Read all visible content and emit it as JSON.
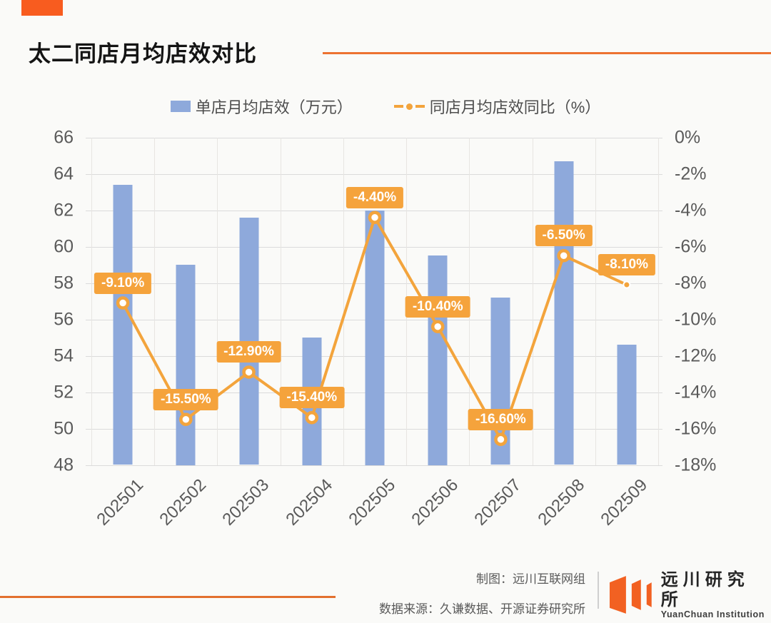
{
  "header": {
    "title": "太二同店月均店效对比",
    "accent_color": "#F85C1F",
    "rule_color": "#ED7231"
  },
  "legend": {
    "bar_label": "单店月均店效（万元）",
    "line_label": "同店月均店效同比（%）"
  },
  "chart_data": {
    "type": "bar+line",
    "categories": [
      "202501",
      "202502",
      "202503",
      "202504",
      "202505",
      "202506",
      "202507",
      "202508",
      "202509"
    ],
    "series": [
      {
        "name": "单店月均店效（万元）",
        "type": "bar",
        "axis": "left",
        "color": "#8EA9DB",
        "values": [
          63.4,
          59.0,
          61.6,
          55.0,
          62.0,
          59.5,
          57.2,
          64.7,
          54.6
        ]
      },
      {
        "name": "同店月均店效同比（%）",
        "type": "line",
        "axis": "right",
        "color": "#F3A43C",
        "values": [
          -9.1,
          -15.5,
          -12.9,
          -15.4,
          -4.4,
          -10.4,
          -16.6,
          -6.5,
          -8.1
        ],
        "point_labels": [
          "-9.10%",
          "-15.50%",
          "-12.90%",
          "-15.40%",
          "-4.40%",
          "-10.40%",
          "-16.60%",
          "-6.50%",
          "-8.10%"
        ]
      }
    ],
    "left_axis": {
      "min": 48,
      "max": 66,
      "step": 2,
      "ticks": [
        "66",
        "64",
        "62",
        "60",
        "58",
        "56",
        "54",
        "52",
        "50",
        "48"
      ]
    },
    "right_axis": {
      "min": -18,
      "max": 0,
      "step": 2,
      "ticks": [
        "0%",
        "-2%",
        "-4%",
        "-6%",
        "-8%",
        "-10%",
        "-12%",
        "-14%",
        "-16%",
        "-18%"
      ]
    },
    "grid": true,
    "legend_position": "top"
  },
  "footer": {
    "credit": "制图：远川互联网组",
    "source": "数据来源：久谦数据、开源证券研究所",
    "logo_cn": "远川研究所",
    "logo_en": "YuanChuan Institution",
    "logo_color": "#F26122"
  }
}
